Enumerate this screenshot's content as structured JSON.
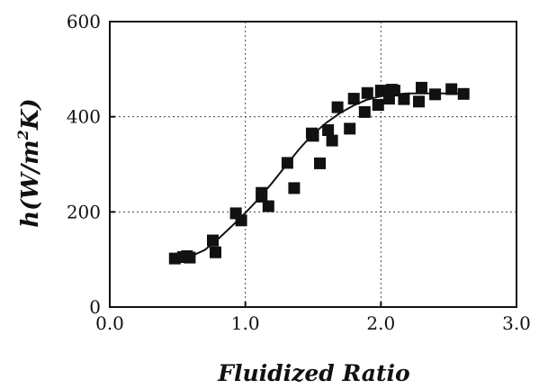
{
  "chart_data": {
    "type": "scatter",
    "title": "",
    "xlabel": "Fluidized Ratio",
    "ylabel": "h(W/m²K)",
    "ylabel_parts": {
      "main": "h(W/m",
      "sup": "2",
      "tail": "K)"
    },
    "xlim": [
      0.0,
      3.0
    ],
    "ylim": [
      0,
      600
    ],
    "xticks": [
      0.0,
      1.0,
      2.0,
      3.0
    ],
    "xtick_labels": [
      "0.0",
      "1.0",
      "2.0",
      "3.0"
    ],
    "yticks": [
      0,
      200,
      400,
      600
    ],
    "ytick_labels": [
      "0",
      "200",
      "400",
      "600"
    ],
    "grid": true,
    "grid_style": "dotted",
    "marker": "filled-square",
    "series": [
      {
        "points": [
          [
            0.48,
            102
          ],
          [
            0.54,
            105
          ],
          [
            0.57,
            107
          ],
          [
            0.59,
            104
          ],
          [
            0.76,
            140
          ],
          [
            0.78,
            115
          ],
          [
            0.93,
            197
          ],
          [
            0.97,
            182
          ],
          [
            1.12,
            240
          ],
          [
            1.12,
            232
          ],
          [
            1.17,
            212
          ],
          [
            1.31,
            303
          ],
          [
            1.36,
            250
          ],
          [
            1.49,
            365
          ],
          [
            1.5,
            360
          ],
          [
            1.55,
            302
          ],
          [
            1.61,
            372
          ],
          [
            1.64,
            350
          ],
          [
            1.68,
            420
          ],
          [
            1.77,
            375
          ],
          [
            1.8,
            438
          ],
          [
            1.88,
            410
          ],
          [
            1.9,
            450
          ],
          [
            1.98,
            425
          ],
          [
            2.0,
            455
          ],
          [
            2.06,
            438
          ],
          [
            2.08,
            457
          ],
          [
            2.1,
            455
          ],
          [
            2.17,
            437
          ],
          [
            2.28,
            432
          ],
          [
            2.3,
            461
          ],
          [
            2.4,
            447
          ],
          [
            2.52,
            458
          ],
          [
            2.61,
            448
          ]
        ]
      }
    ],
    "fit_curve": {
      "points": [
        [
          0.5,
          102
        ],
        [
          0.6,
          107
        ],
        [
          0.7,
          120
        ],
        [
          0.8,
          143
        ],
        [
          0.9,
          170
        ],
        [
          1.0,
          198
        ],
        [
          1.1,
          228
        ],
        [
          1.2,
          262
        ],
        [
          1.3,
          298
        ],
        [
          1.4,
          333
        ],
        [
          1.5,
          364
        ],
        [
          1.6,
          388
        ],
        [
          1.7,
          408
        ],
        [
          1.8,
          424
        ],
        [
          1.9,
          436
        ],
        [
          2.0,
          443
        ],
        [
          2.1,
          447
        ],
        [
          2.2,
          449
        ],
        [
          2.3,
          449
        ],
        [
          2.4,
          449
        ],
        [
          2.5,
          449
        ],
        [
          2.6,
          449
        ]
      ]
    }
  }
}
